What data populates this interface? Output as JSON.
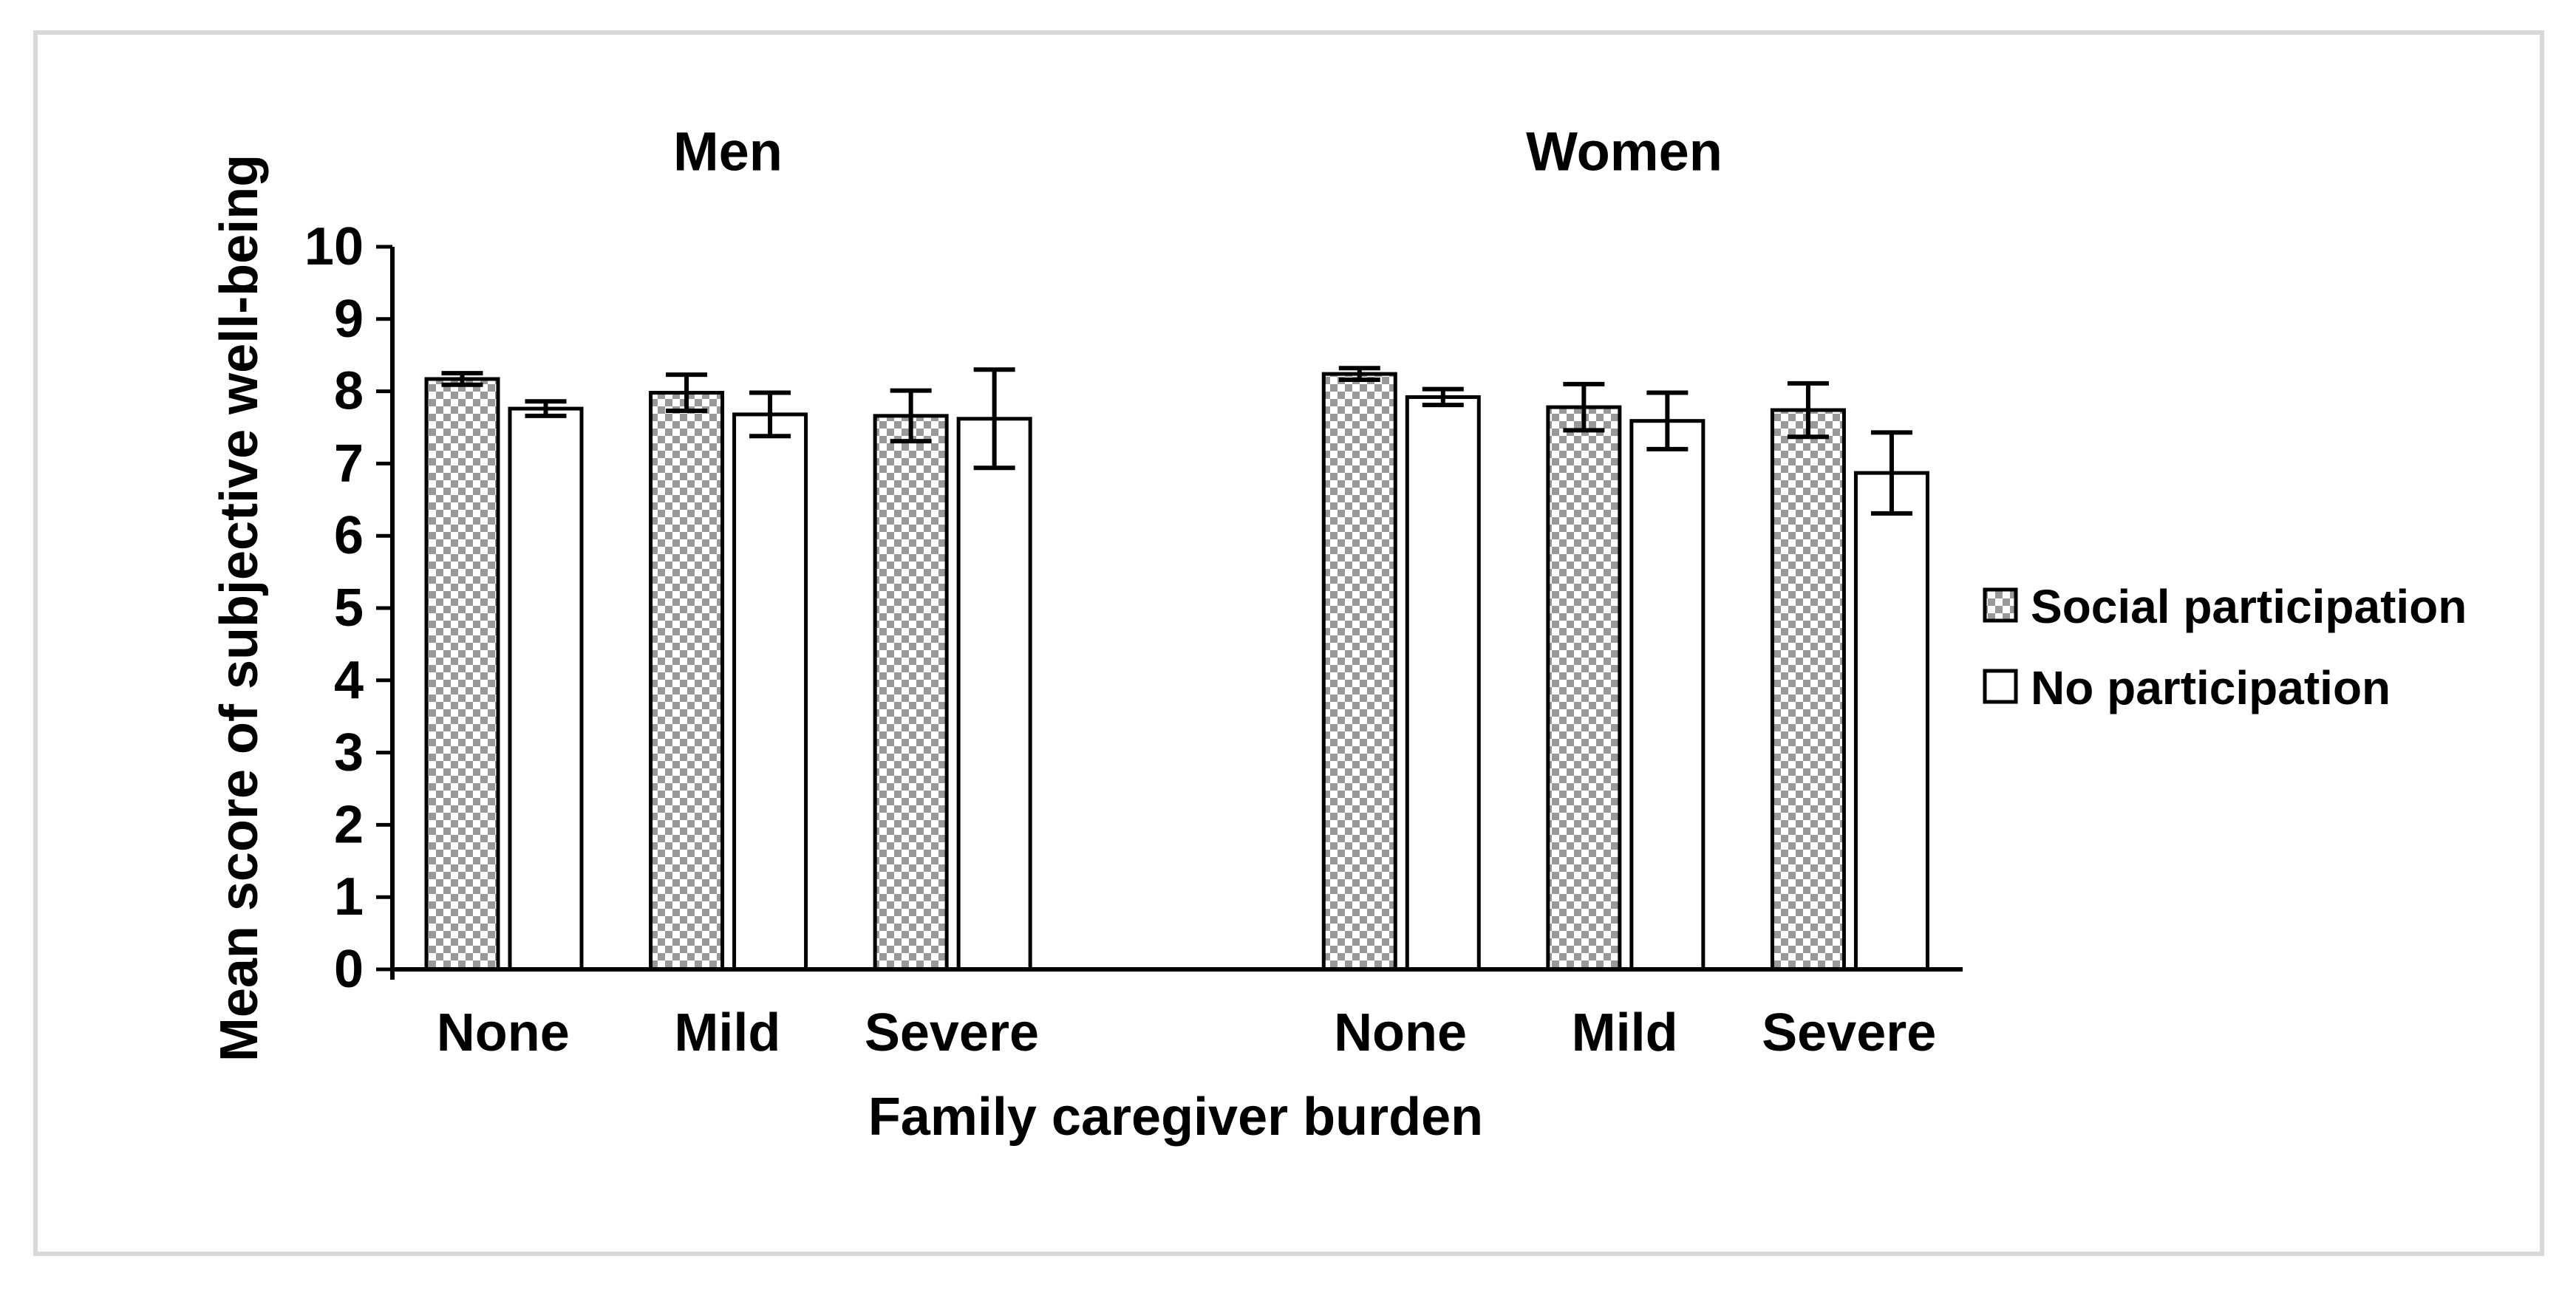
{
  "figure": {
    "background": "#ffffff",
    "border_color": "#d9d9d9",
    "ink_color": "#000000",
    "pattern_gray": "#999999"
  },
  "chart_data": {
    "type": "bar",
    "title": "",
    "ylabel": "Mean score of subjective well-being",
    "xlabel": "Family caregiver burden",
    "ylim": [
      0,
      10
    ],
    "ytick_interval": 1,
    "grid": false,
    "error_bars": true,
    "legend_position": "right",
    "legend": [
      "Social participation",
      "No participation"
    ],
    "series_styles": [
      {
        "name": "Social participation",
        "fill": "checkered-gray",
        "outline": "#000000"
      },
      {
        "name": "No participation",
        "fill": "#ffffff",
        "outline": "#000000"
      }
    ],
    "groups": [
      {
        "title": "Men",
        "categories": [
          "None",
          "Mild",
          "Severe"
        ],
        "series": [
          {
            "name": "Social participation",
            "values": [
              8.17,
              7.98,
              7.66
            ],
            "errors": [
              0.08,
              0.25,
              0.35
            ]
          },
          {
            "name": "No participation",
            "values": [
              7.76,
              7.68,
              7.62
            ],
            "errors": [
              0.1,
              0.3,
              0.68
            ]
          }
        ]
      },
      {
        "title": "Women",
        "categories": [
          "None",
          "Mild",
          "Severe"
        ],
        "series": [
          {
            "name": "Social participation",
            "values": [
              8.24,
              7.78,
              7.74
            ],
            "errors": [
              0.08,
              0.32,
              0.37
            ]
          },
          {
            "name": "No participation",
            "values": [
              7.92,
              7.59,
              6.87
            ],
            "errors": [
              0.11,
              0.39,
              0.56
            ]
          }
        ]
      }
    ]
  }
}
